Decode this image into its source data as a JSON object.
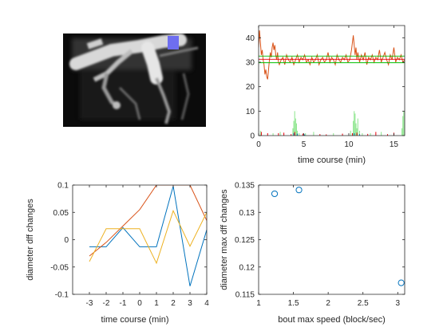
{
  "figure": {
    "image_panel": {
      "description_color": "#ffffff"
    }
  },
  "colors": {
    "blue": "#0072bd",
    "orange": "#d95319",
    "yellow": "#edb120",
    "green": "#00c000",
    "lightgreen": "#8be58b",
    "red": "#e8000b",
    "axis": "#262626"
  },
  "chart_data": [
    {
      "id": "trace",
      "type": "line",
      "xlabel": "time course (min)",
      "ylabel": "",
      "xlim": [
        0,
        16.2
      ],
      "ylim": [
        0,
        45
      ],
      "xticks": [
        0,
        5,
        10,
        15
      ],
      "xticklabels": [
        "0",
        "5",
        "10",
        "15"
      ],
      "yticks": [
        0,
        10,
        20,
        30,
        40
      ],
      "yticklabels": [
        "0",
        "10",
        "20",
        "30",
        "40"
      ],
      "series": [
        {
          "role": "diameter",
          "color": "orange",
          "x": [
            0,
            0.1,
            0.2,
            0.3,
            0.4,
            0.5,
            0.6,
            0.7,
            0.8,
            0.9,
            1.0,
            1.1,
            1.2,
            1.3,
            1.4,
            1.5,
            1.6,
            1.7,
            1.8,
            1.9,
            2.0,
            2.1,
            2.2,
            2.3,
            2.5,
            2.7,
            2.9,
            3.1,
            3.3,
            3.5,
            3.7,
            3.9,
            4.1,
            4.3,
            4.5,
            4.7,
            4.9,
            5.1,
            5.3,
            5.5,
            5.7,
            5.9,
            6.1,
            6.3,
            6.5,
            6.7,
            6.9,
            7.1,
            7.3,
            7.5,
            7.7,
            7.9,
            8.1,
            8.3,
            8.5,
            8.7,
            8.9,
            9.1,
            9.3,
            9.5,
            9.7,
            9.9,
            10.1,
            10.3,
            10.5,
            10.6,
            10.7,
            10.8,
            10.9,
            11.0,
            11.2,
            11.4,
            11.6,
            11.8,
            12.0,
            12.2,
            12.4,
            12.6,
            12.8,
            13.0,
            13.2,
            13.4,
            13.6,
            13.8,
            14.0,
            14.2,
            14.4,
            14.6,
            14.8,
            15.0,
            15.2,
            15.4,
            15.6,
            15.8,
            16.0,
            16.2
          ],
          "y": [
            36,
            43,
            38,
            33,
            35,
            31,
            29,
            25,
            27,
            24,
            23,
            27,
            31,
            34,
            32,
            36,
            38,
            35,
            37,
            33,
            31,
            34,
            30,
            29,
            31,
            32,
            29,
            33,
            31,
            30,
            32,
            29,
            31,
            33,
            30,
            32,
            31,
            33,
            30,
            31,
            29,
            32,
            30,
            31,
            33,
            29,
            31,
            32,
            30,
            31,
            34,
            30,
            32,
            31,
            29,
            33,
            31,
            30,
            32,
            31,
            33,
            30,
            31,
            35,
            41,
            37,
            33,
            36,
            31,
            34,
            30,
            33,
            31,
            34,
            29,
            32,
            31,
            33,
            30,
            32,
            31,
            35,
            30,
            32,
            34,
            31,
            29,
            33,
            31,
            36,
            30,
            32,
            31,
            33,
            30,
            31
          ]
        },
        {
          "role": "baseline-upper",
          "color": "green",
          "x": [
            0,
            16.2
          ],
          "y": [
            32.5,
            32.5
          ]
        },
        {
          "role": "baseline-lower",
          "color": "green",
          "x": [
            0,
            16.2
          ],
          "y": [
            29.8,
            29.8
          ]
        },
        {
          "role": "mean",
          "color": "red",
          "x": [
            0,
            16.2
          ],
          "y": [
            31.2,
            31.2
          ]
        },
        {
          "role": "speed",
          "color": "lightgreen",
          "type": "spikes",
          "x": [
            0.2,
            1.6,
            2.4,
            3.8,
            3.9,
            4.0,
            4.1,
            4.2,
            4.3,
            4.5,
            5.2,
            6.1,
            8.3,
            10.2,
            10.5,
            10.6,
            10.7,
            10.8,
            10.9,
            11.0,
            11.2,
            11.5,
            12.4,
            13.6,
            15.9,
            16.0,
            16.1
          ],
          "y": [
            2,
            1,
            1.5,
            3,
            6,
            10,
            7,
            5,
            2,
            1,
            1,
            1.5,
            1,
            2,
            6,
            10,
            9,
            5,
            3,
            7,
            2,
            1,
            1,
            1.5,
            3,
            8,
            10
          ]
        },
        {
          "role": "speed-blue",
          "color": "blue",
          "type": "spikes",
          "x": [
            3.9,
            4.3,
            5.1,
            10.6,
            11.2
          ],
          "y": [
            1,
            0.8,
            0.5,
            1,
            0.6
          ]
        },
        {
          "role": "speed-red",
          "color": "red",
          "type": "spikes",
          "x": [
            0.3,
            1.0,
            2.2,
            2.8,
            3.6,
            4.0,
            4.9,
            6.8,
            7.5,
            9.3,
            10.4,
            10.9,
            12.1,
            13.0,
            14.3,
            15.0
          ],
          "y": [
            1.5,
            1,
            1,
            1.2,
            0.6,
            1.5,
            0.8,
            0.6,
            0.5,
            0.8,
            1,
            1.2,
            0.7,
            1.5,
            0.6,
            1.2
          ]
        }
      ]
    },
    {
      "id": "aligned",
      "type": "line",
      "xlabel": "time course (min)",
      "ylabel": "diameter dff changes",
      "xlim": [
        -4,
        4
      ],
      "ylim": [
        -0.1,
        0.1
      ],
      "xticks": [
        -3,
        -2,
        -1,
        0,
        1,
        2,
        3,
        4
      ],
      "xticklabels": [
        "-3",
        "-2",
        "-1",
        "0",
        "1",
        "2",
        "3",
        "4"
      ],
      "yticks": [
        -0.1,
        -0.05,
        0,
        0.05,
        0.1
      ],
      "yticklabels": [
        "-0.1",
        "-0.05",
        "0",
        "0.05",
        "0.1"
      ],
      "series": [
        {
          "color": "blue",
          "x": [
            -3,
            -2,
            -1,
            0,
            1,
            2,
            3,
            4
          ],
          "y": [
            -0.013,
            -0.013,
            0.022,
            -0.013,
            -0.013,
            0.098,
            -0.085,
            0.018
          ]
        },
        {
          "color": "orange",
          "x": [
            -3,
            -2,
            -1,
            0,
            1,
            2,
            3,
            4
          ],
          "y": [
            -0.03,
            -0.005,
            0.025,
            0.055,
            0.1,
            0.1,
            0.1,
            0.035
          ]
        },
        {
          "color": "yellow",
          "x": [
            -3,
            -2,
            -1,
            0,
            1,
            2,
            3,
            4
          ],
          "y": [
            -0.04,
            0.02,
            0.02,
            0.02,
            -0.043,
            0.053,
            -0.012,
            0.05
          ]
        }
      ]
    },
    {
      "id": "scatter",
      "type": "scatter",
      "xlabel": "bout max speed (block/sec)",
      "ylabel": "diameter max dff changes",
      "xlim": [
        1,
        3.1
      ],
      "ylim": [
        0.115,
        0.135
      ],
      "xticks": [
        1,
        1.5,
        2,
        2.5,
        3
      ],
      "xticklabels": [
        "1",
        "1.5",
        "2",
        "2.5",
        "3"
      ],
      "yticks": [
        0.115,
        0.12,
        0.125,
        0.13,
        0.135
      ],
      "yticklabels": [
        "0.115",
        "0.12",
        "0.125",
        "0.13",
        "0.135"
      ],
      "series": [
        {
          "color": "blue",
          "x": [
            1.23,
            1.58,
            3.05
          ],
          "y": [
            0.1334,
            0.1341,
            0.1171
          ]
        }
      ]
    }
  ]
}
